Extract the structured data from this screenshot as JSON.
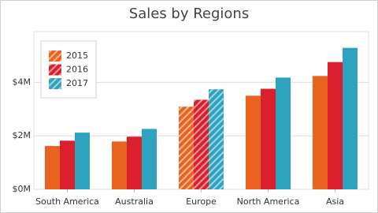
{
  "chart_data": {
    "type": "bar",
    "title": "Sales by Regions",
    "categories": [
      "South America",
      "Australia",
      "Europe",
      "North America",
      "Asia"
    ],
    "series": [
      {
        "name": "2015",
        "color": "#e8631f",
        "values": [
          1.62,
          1.79,
          3.09,
          3.5,
          4.24
        ]
      },
      {
        "name": "2016",
        "color": "#d9202c",
        "values": [
          1.82,
          1.97,
          3.35,
          3.76,
          4.76
        ]
      },
      {
        "name": "2017",
        "color": "#2ea3c0",
        "values": [
          2.12,
          2.26,
          3.74,
          4.18,
          5.29
        ]
      }
    ],
    "ylim": [
      0,
      5.9
    ],
    "yticks": [
      {
        "value": 0,
        "label": "$0M"
      },
      {
        "value": 2,
        "label": "$2M"
      },
      {
        "value": 4,
        "label": "$4M"
      }
    ],
    "grid": true,
    "legend": "top-left",
    "highlight": "Europe"
  }
}
